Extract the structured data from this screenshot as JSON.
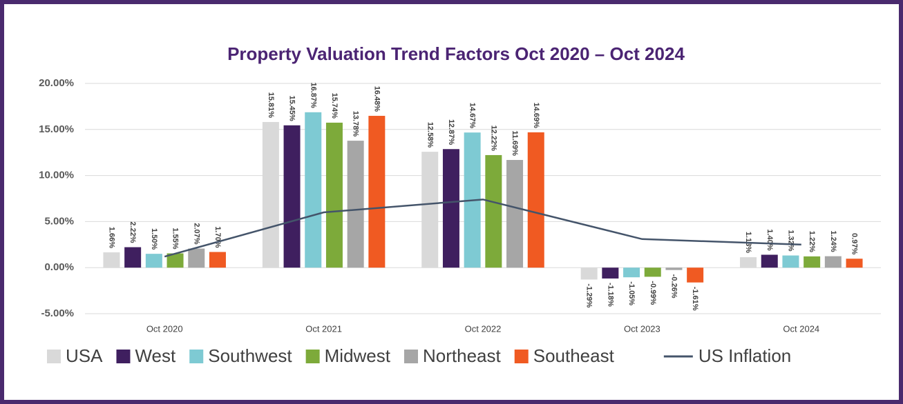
{
  "chart_data": {
    "type": "bar",
    "title": "Property Valuation Trend Factors Oct 2020 – Oct 2024",
    "categories": [
      "Oct 2020",
      "Oct 2021",
      "Oct 2022",
      "Oct 2023",
      "Oct 2024"
    ],
    "series": [
      {
        "name": "USA",
        "color": "#d9d9d9",
        "values": [
          1.66,
          15.81,
          12.58,
          -1.29,
          1.13
        ],
        "value_labels": [
          "1.66%",
          "15.81%",
          "12.58%",
          "-1.29%",
          "1.13%"
        ]
      },
      {
        "name": "West",
        "color": "#3f1f5f",
        "values": [
          2.22,
          15.45,
          12.87,
          -1.18,
          1.4
        ],
        "value_labels": [
          "2.22%",
          "15.45%",
          "12.87%",
          "-1.18%",
          "1.40%"
        ]
      },
      {
        "name": "Southwest",
        "color": "#7ecad3",
        "values": [
          1.5,
          16.87,
          14.67,
          -1.05,
          1.32
        ],
        "value_labels": [
          "1.50%",
          "16.87%",
          "14.67%",
          "-1.05%",
          "1.32%"
        ]
      },
      {
        "name": "Midwest",
        "color": "#7daa3a",
        "values": [
          1.55,
          15.74,
          12.22,
          -0.99,
          1.22
        ],
        "value_labels": [
          "1.55%",
          "15.74%",
          "12.22%",
          "-0.99%",
          "1.22%"
        ]
      },
      {
        "name": "Northeast",
        "color": "#a6a6a6",
        "values": [
          2.07,
          13.78,
          11.69,
          -0.26,
          1.24
        ],
        "value_labels": [
          "2.07%",
          "13.78%",
          "11.69%",
          "-0.26%",
          "1.24%"
        ]
      },
      {
        "name": "Southeast",
        "color": "#f05a22",
        "values": [
          1.7,
          16.48,
          14.69,
          -1.61,
          0.97
        ],
        "value_labels": [
          "1.70%",
          "16.48%",
          "14.69%",
          "-1.61%",
          "0.97%"
        ]
      },
      {
        "name": "US Inflation",
        "color": "#44546a",
        "type": "line",
        "values": [
          1.2,
          6.0,
          7.4,
          3.1,
          2.5
        ]
      }
    ],
    "ylim": [
      -5,
      20
    ],
    "yticks": [
      {
        "value": -5,
        "label": "-5.00%"
      },
      {
        "value": 0,
        "label": "0.00%"
      },
      {
        "value": 5,
        "label": "5.00%"
      },
      {
        "value": 10,
        "label": "10.00%"
      },
      {
        "value": 15,
        "label": "15.00%"
      },
      {
        "value": 20,
        "label": "20.00%"
      }
    ],
    "grid": true,
    "legend": "bottom"
  }
}
